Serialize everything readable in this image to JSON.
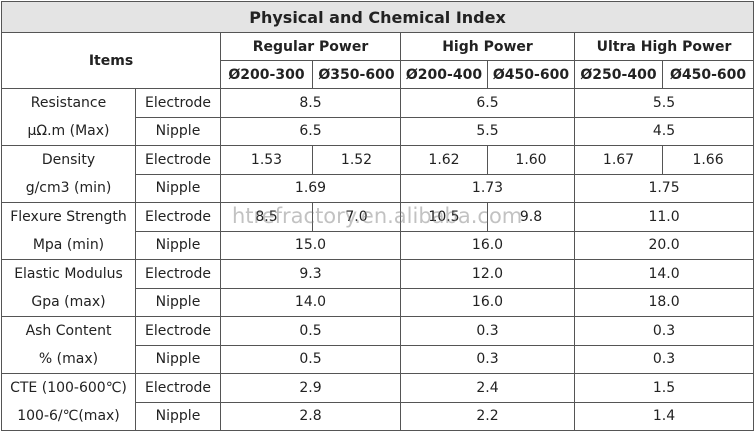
{
  "title": "Physical and Chemical Index",
  "header": {
    "items": "Items",
    "groups": [
      {
        "name": "Regular Power",
        "sizes": [
          "Ø200-300",
          "Ø350-600"
        ]
      },
      {
        "name": "High Power",
        "sizes": [
          "Ø200-400",
          "Ø450-600"
        ]
      },
      {
        "name": "Ultra High Power",
        "sizes": [
          "Ø250-400",
          "Ø450-600"
        ]
      }
    ]
  },
  "rows": [
    {
      "label": [
        "Resistance",
        "μΩ.m (Max)"
      ],
      "parts": [
        {
          "name": "Electrode",
          "values": [
            [
              "8.5"
            ],
            [
              "6.5"
            ],
            [
              "5.5"
            ]
          ]
        },
        {
          "name": "Nipple",
          "values": [
            [
              "6.5"
            ],
            [
              "5.5"
            ],
            [
              "4.5"
            ]
          ]
        }
      ]
    },
    {
      "label": [
        "Density",
        "g/cm3 (min)"
      ],
      "parts": [
        {
          "name": "Electrode",
          "values": [
            [
              "1.53",
              "1.52"
            ],
            [
              "1.62",
              "1.60"
            ],
            [
              "1.67",
              "1.66"
            ]
          ]
        },
        {
          "name": "Nipple",
          "values": [
            [
              "1.69"
            ],
            [
              "1.73"
            ],
            [
              "1.75"
            ]
          ]
        }
      ]
    },
    {
      "label": [
        "Flexure Strength",
        "Mpa (min)"
      ],
      "parts": [
        {
          "name": "Electrode",
          "values": [
            [
              "8.5",
              "7.0"
            ],
            [
              "10.5",
              "9.8"
            ],
            [
              "11.0"
            ]
          ]
        },
        {
          "name": "Nipple",
          "values": [
            [
              "15.0"
            ],
            [
              "16.0"
            ],
            [
              "20.0"
            ]
          ]
        }
      ]
    },
    {
      "label": [
        "Elastic Modulus",
        "Gpa (max)"
      ],
      "parts": [
        {
          "name": "Electrode",
          "values": [
            [
              "9.3"
            ],
            [
              "12.0"
            ],
            [
              "14.0"
            ]
          ]
        },
        {
          "name": "Nipple",
          "values": [
            [
              "14.0"
            ],
            [
              "16.0"
            ],
            [
              "18.0"
            ]
          ]
        }
      ]
    },
    {
      "label": [
        "Ash Content",
        "% (max)"
      ],
      "parts": [
        {
          "name": "Electrode",
          "values": [
            [
              "0.5"
            ],
            [
              "0.3"
            ],
            [
              "0.3"
            ]
          ]
        },
        {
          "name": "Nipple",
          "values": [
            [
              "0.5"
            ],
            [
              "0.3"
            ],
            [
              "0.3"
            ]
          ]
        }
      ]
    },
    {
      "label": [
        "CTE (100-600℃)",
        "100-6/℃(max)"
      ],
      "parts": [
        {
          "name": "Electrode",
          "values": [
            [
              "2.9"
            ],
            [
              "2.4"
            ],
            [
              "1.5"
            ]
          ]
        },
        {
          "name": "Nipple",
          "values": [
            [
              "2.8"
            ],
            [
              "2.2"
            ],
            [
              "1.4"
            ]
          ]
        }
      ]
    }
  ],
  "watermark": "htrefractory.en.alibaba.com"
}
